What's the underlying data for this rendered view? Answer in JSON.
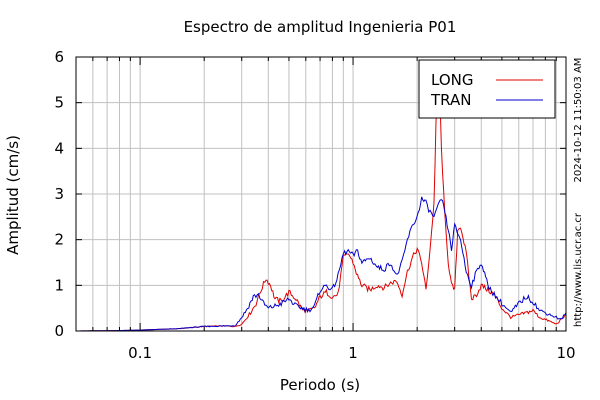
{
  "chart_data": {
    "type": "line",
    "title": "Espectro de amplitud Ingenieria P01",
    "xlabel": "Periodo (s)",
    "ylabel": "Amplitud (cm/s)",
    "x_scale": "log",
    "xlim": [
      0.05,
      10
    ],
    "ylim": [
      0,
      6
    ],
    "x_ticks": [
      {
        "value": 0.1,
        "label": "0.1"
      },
      {
        "value": 1,
        "label": "1"
      },
      {
        "value": 10,
        "label": "10"
      }
    ],
    "y_ticks": [
      {
        "value": 0,
        "label": "0"
      },
      {
        "value": 1,
        "label": "1"
      },
      {
        "value": 2,
        "label": "2"
      },
      {
        "value": 3,
        "label": "3"
      },
      {
        "value": 4,
        "label": "4"
      },
      {
        "value": 5,
        "label": "5"
      },
      {
        "value": 6,
        "label": "6"
      }
    ],
    "grid": true,
    "legend": "top-right",
    "side_text": [
      "2024-10-12 11:50:03 AM",
      "http://www.lis.ucr.ac.cr"
    ],
    "series": [
      {
        "name": "LONG",
        "color": "#dd0000",
        "points": [
          [
            0.05,
            0
          ],
          [
            0.08,
            0.01
          ],
          [
            0.1,
            0.02
          ],
          [
            0.15,
            0.05
          ],
          [
            0.2,
            0.1
          ],
          [
            0.25,
            0.11
          ],
          [
            0.28,
            0.1
          ],
          [
            0.3,
            0.15
          ],
          [
            0.33,
            0.4
          ],
          [
            0.35,
            0.6
          ],
          [
            0.37,
            0.9
          ],
          [
            0.39,
            1.15
          ],
          [
            0.41,
            1.0
          ],
          [
            0.43,
            0.7
          ],
          [
            0.46,
            0.65
          ],
          [
            0.5,
            0.85
          ],
          [
            0.54,
            0.7
          ],
          [
            0.58,
            0.45
          ],
          [
            0.62,
            0.45
          ],
          [
            0.66,
            0.5
          ],
          [
            0.7,
            0.75
          ],
          [
            0.75,
            0.85
          ],
          [
            0.8,
            0.75
          ],
          [
            0.85,
            0.8
          ],
          [
            0.9,
            1.6
          ],
          [
            0.95,
            1.7
          ],
          [
            1.0,
            1.5
          ],
          [
            1.05,
            1.2
          ],
          [
            1.1,
            1.0
          ],
          [
            1.2,
            0.9
          ],
          [
            1.3,
            1.0
          ],
          [
            1.4,
            0.95
          ],
          [
            1.5,
            1.05
          ],
          [
            1.6,
            1.1
          ],
          [
            1.7,
            0.8
          ],
          [
            1.8,
            1.3
          ],
          [
            1.9,
            1.6
          ],
          [
            2.0,
            1.8
          ],
          [
            2.1,
            1.5
          ],
          [
            2.2,
            0.9
          ],
          [
            2.3,
            1.8
          ],
          [
            2.4,
            2.8
          ],
          [
            2.45,
            4.5
          ],
          [
            2.5,
            5.7
          ],
          [
            2.55,
            5.3
          ],
          [
            2.6,
            4.0
          ],
          [
            2.7,
            2.5
          ],
          [
            2.8,
            1.5
          ],
          [
            2.9,
            1.0
          ],
          [
            3.0,
            0.9
          ],
          [
            3.1,
            2.2
          ],
          [
            3.2,
            2.3
          ],
          [
            3.4,
            1.7
          ],
          [
            3.6,
            0.7
          ],
          [
            3.8,
            0.8
          ],
          [
            4.0,
            1.0
          ],
          [
            4.3,
            0.9
          ],
          [
            4.6,
            0.8
          ],
          [
            5.0,
            0.5
          ],
          [
            5.5,
            0.3
          ],
          [
            6.0,
            0.35
          ],
          [
            6.5,
            0.4
          ],
          [
            7.0,
            0.45
          ],
          [
            7.5,
            0.3
          ],
          [
            8.0,
            0.25
          ],
          [
            8.5,
            0.2
          ],
          [
            9.0,
            0.15
          ],
          [
            9.5,
            0.25
          ],
          [
            10.0,
            0.35
          ]
        ]
      },
      {
        "name": "TRAN",
        "color": "#0000cc",
        "points": [
          [
            0.05,
            0
          ],
          [
            0.08,
            0.01
          ],
          [
            0.1,
            0.02
          ],
          [
            0.15,
            0.05
          ],
          [
            0.2,
            0.1
          ],
          [
            0.25,
            0.11
          ],
          [
            0.28,
            0.12
          ],
          [
            0.3,
            0.3
          ],
          [
            0.32,
            0.5
          ],
          [
            0.34,
            0.75
          ],
          [
            0.36,
            0.8
          ],
          [
            0.38,
            0.6
          ],
          [
            0.4,
            0.5
          ],
          [
            0.43,
            0.55
          ],
          [
            0.46,
            0.6
          ],
          [
            0.5,
            0.7
          ],
          [
            0.54,
            0.55
          ],
          [
            0.58,
            0.5
          ],
          [
            0.62,
            0.45
          ],
          [
            0.66,
            0.55
          ],
          [
            0.7,
            0.9
          ],
          [
            0.75,
            1.0
          ],
          [
            0.8,
            0.9
          ],
          [
            0.85,
            1.2
          ],
          [
            0.9,
            1.7
          ],
          [
            0.95,
            1.75
          ],
          [
            1.0,
            1.65
          ],
          [
            1.05,
            1.75
          ],
          [
            1.1,
            1.5
          ],
          [
            1.2,
            1.6
          ],
          [
            1.3,
            1.4
          ],
          [
            1.4,
            1.35
          ],
          [
            1.5,
            1.5
          ],
          [
            1.6,
            1.2
          ],
          [
            1.7,
            1.5
          ],
          [
            1.8,
            2.0
          ],
          [
            1.9,
            2.3
          ],
          [
            2.0,
            2.5
          ],
          [
            2.1,
            2.9
          ],
          [
            2.2,
            2.8
          ],
          [
            2.3,
            2.6
          ],
          [
            2.4,
            2.5
          ],
          [
            2.5,
            2.7
          ],
          [
            2.6,
            2.9
          ],
          [
            2.7,
            2.6
          ],
          [
            2.8,
            2.2
          ],
          [
            2.9,
            1.8
          ],
          [
            3.0,
            2.3
          ],
          [
            3.2,
            2.0
          ],
          [
            3.4,
            1.3
          ],
          [
            3.6,
            1.0
          ],
          [
            3.8,
            1.3
          ],
          [
            4.0,
            1.5
          ],
          [
            4.3,
            1.0
          ],
          [
            4.6,
            0.8
          ],
          [
            5.0,
            0.6
          ],
          [
            5.5,
            0.4
          ],
          [
            6.0,
            0.6
          ],
          [
            6.5,
            0.75
          ],
          [
            7.0,
            0.65
          ],
          [
            7.5,
            0.45
          ],
          [
            8.0,
            0.4
          ],
          [
            8.5,
            0.35
          ],
          [
            9.0,
            0.3
          ],
          [
            9.5,
            0.25
          ],
          [
            10.0,
            0.4
          ]
        ]
      }
    ]
  }
}
